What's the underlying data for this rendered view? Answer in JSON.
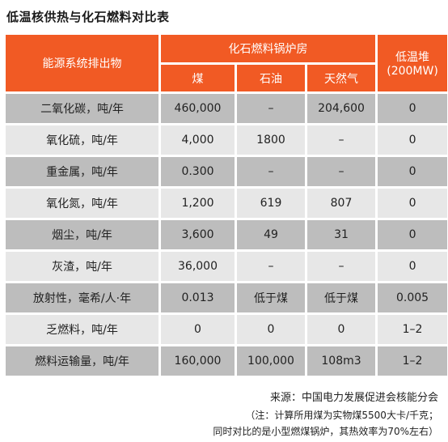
{
  "title": "低温核供热与化石燃料对比表",
  "colors": {
    "header_bg": "#f15a24",
    "header_text": "#ffffff",
    "row_dark": "#bdbdbd",
    "row_light": "#e7e7e7"
  },
  "table": {
    "header": {
      "emission": "能源系统排出物",
      "fossil_group": "化石燃料锅炉房",
      "coal": "煤",
      "oil": "石油",
      "gas": "天然气",
      "nuclear_line1": "低温堆",
      "nuclear_line2": "(200MW)"
    },
    "rows": [
      {
        "label": "二氧化碳，吨/年",
        "coal": "460,000",
        "oil": "–",
        "gas": "204,600",
        "nuclear": "0"
      },
      {
        "label": "氧化硫，吨/年",
        "coal": "4,000",
        "oil": "1800",
        "gas": "–",
        "nuclear": "0"
      },
      {
        "label": "重金属，吨/年",
        "coal": "0.300",
        "oil": "–",
        "gas": "–",
        "nuclear": "0"
      },
      {
        "label": "氧化氮，吨/年",
        "coal": "1,200",
        "oil": "619",
        "gas": "807",
        "nuclear": "0"
      },
      {
        "label": "烟尘，吨/年",
        "coal": "3,600",
        "oil": "49",
        "gas": "31",
        "nuclear": "0"
      },
      {
        "label": "灰渣，吨/年",
        "coal": "36,000",
        "oil": "–",
        "gas": "–",
        "nuclear": "0"
      },
      {
        "label": "放射性，毫希/人·年",
        "coal": "0.013",
        "oil": "低于煤",
        "gas": "低于煤",
        "nuclear": "0.005"
      },
      {
        "label": "乏燃料，吨/年",
        "coal": "0",
        "oil": "0",
        "gas": "0",
        "nuclear": "1–2"
      },
      {
        "label": "燃料运输量，吨/年",
        "coal": "160,000",
        "oil": "100,000",
        "gas": "108m3",
        "nuclear": "1–2"
      }
    ]
  },
  "source": "来源：中国电力发展促进会核能分会",
  "note_line1": "（注：计算所用煤为实物煤5500大卡/千克；",
  "note_line2": "同时对比的是小型燃煤锅炉，其热效率为70%左右）"
}
